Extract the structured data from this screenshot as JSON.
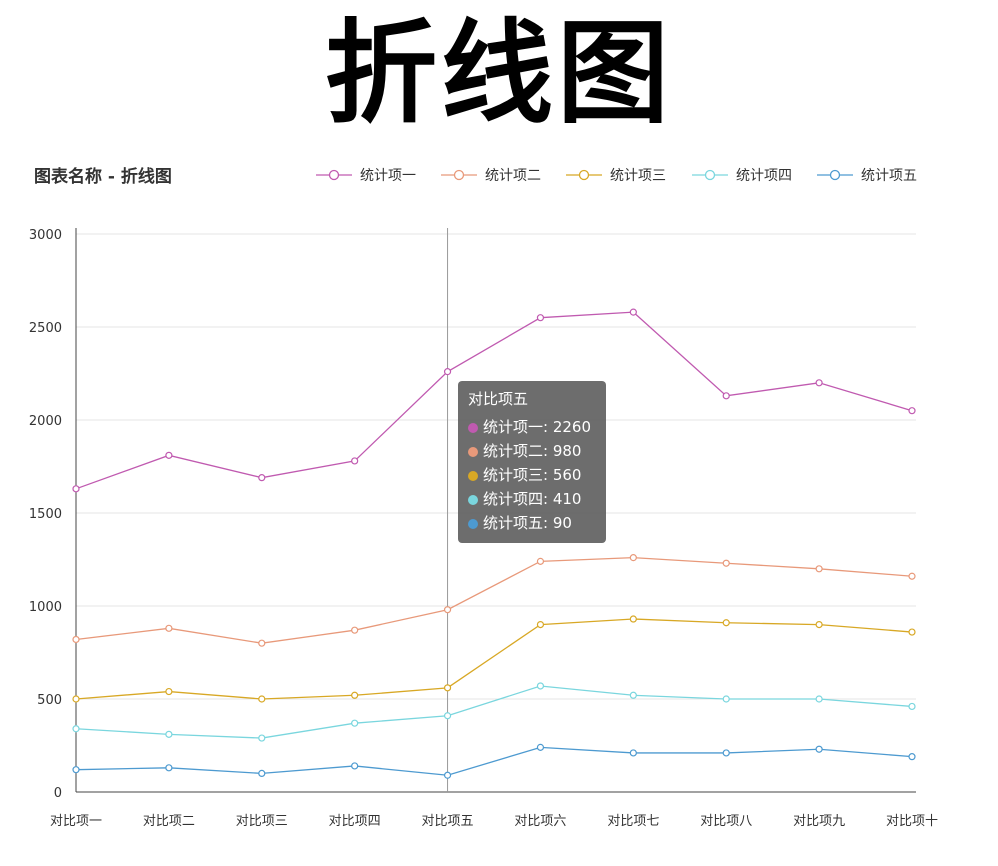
{
  "banner_title": "折线图",
  "chart_data": {
    "type": "line",
    "title": "图表名称 - 折线图",
    "categories": [
      "对比项一",
      "对比项二",
      "对比项三",
      "对比项四",
      "对比项五",
      "对比项六",
      "对比项七",
      "对比项八",
      "对比项九",
      "对比项十"
    ],
    "series": [
      {
        "name": "统计项一",
        "color": "#c05ab0",
        "values": [
          1630,
          1810,
          1690,
          1780,
          2260,
          2550,
          2580,
          2130,
          2200,
          2050
        ]
      },
      {
        "name": "统计项二",
        "color": "#e8997a",
        "values": [
          820,
          880,
          800,
          870,
          980,
          1240,
          1260,
          1230,
          1200,
          1160
        ]
      },
      {
        "name": "统计项三",
        "color": "#d8a825",
        "values": [
          500,
          540,
          500,
          520,
          560,
          900,
          930,
          910,
          900,
          860
        ]
      },
      {
        "name": "统计项四",
        "color": "#7ad6de",
        "values": [
          340,
          310,
          290,
          370,
          410,
          570,
          520,
          500,
          500,
          460
        ]
      },
      {
        "name": "统计项五",
        "color": "#4d9ad0",
        "values": [
          120,
          130,
          100,
          140,
          90,
          240,
          210,
          210,
          230,
          190
        ]
      }
    ],
    "ylim": [
      0,
      3000
    ],
    "yticks": [
      0,
      500,
      1000,
      1500,
      2000,
      2500,
      3000
    ],
    "xlabel": "",
    "ylabel": "",
    "grid": true,
    "legend_position": "top-right",
    "highlight_index": 4
  },
  "tooltip": {
    "title": "对比项五",
    "rows": [
      {
        "label": "统计项一:",
        "value": "2260"
      },
      {
        "label": "统计项二:",
        "value": "980"
      },
      {
        "label": "统计项三:",
        "value": "560"
      },
      {
        "label": "统计项四:",
        "value": "410"
      },
      {
        "label": "统计项五:",
        "value": "90"
      }
    ]
  }
}
